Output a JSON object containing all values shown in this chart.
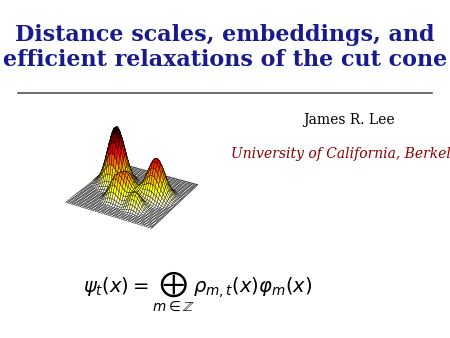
{
  "title_line1": "Distance scales, embeddings, and",
  "title_line2": "efficient relaxations of the cut cone",
  "title_color": "#1a1a8c",
  "title_fontsize": 16,
  "author": "James R. Lee",
  "author_color": "#000000",
  "author_fontsize": 10,
  "institution": "University of California, Berkeley",
  "institution_color": "#8b0000",
  "institution_fontsize": 10,
  "background_color": "#ffffff",
  "formula_fontsize": 14
}
